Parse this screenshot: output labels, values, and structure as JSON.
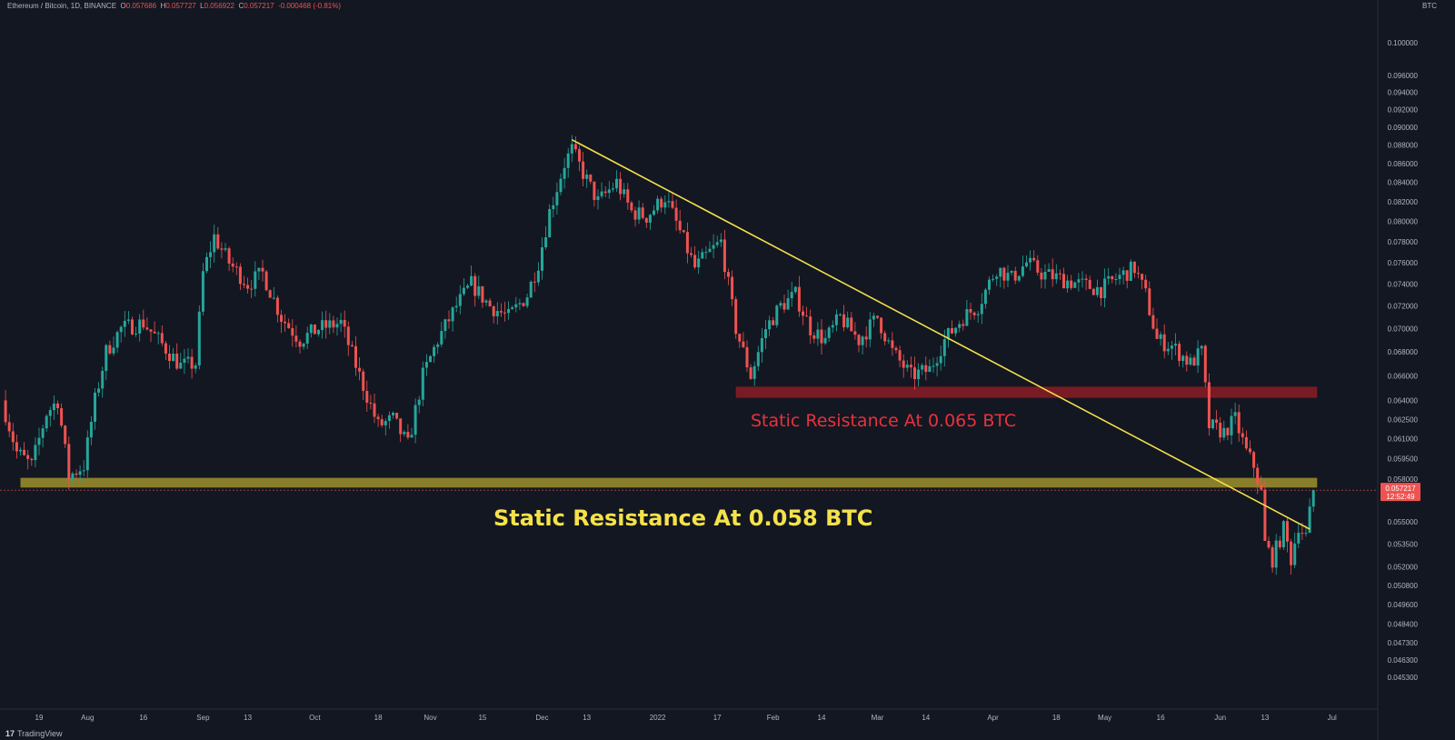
{
  "header": {
    "pair": "Ethereum / Bitcoin, 1D, BINANCE",
    "open_label": "O",
    "open": "0.057686",
    "high_label": "H",
    "high": "0.057727",
    "low_label": "L",
    "low": "0.056922",
    "close_label": "C",
    "close": "0.057217",
    "change": "-0.000468 (-0.81%)"
  },
  "currency_label": "BTC",
  "brand": {
    "name": "TradingView",
    "icon": "tradingview-logo-icon"
  },
  "colors": {
    "background": "#131722",
    "up": "#26a69a",
    "down": "#ef5350",
    "trendline": "#f5e24a",
    "support_zone": "#b2a12e",
    "resistance_zone": "#8c1c24",
    "support_text": "#f5e24a",
    "resistance_text": "#e8323c",
    "price_tag": "#ef5350"
  },
  "chart_data": {
    "type": "candlestick",
    "price_scale": "log",
    "ylim": [
      0.0445,
      0.1045
    ],
    "y_ticks": [
      "0.100000",
      "0.096000",
      "0.094000",
      "0.092000",
      "0.090000",
      "0.088000",
      "0.086000",
      "0.084000",
      "0.082000",
      "0.080000",
      "0.078000",
      "0.076000",
      "0.074000",
      "0.072000",
      "0.070000",
      "0.068000",
      "0.066000",
      "0.064000",
      "0.062500",
      "0.061000",
      "0.059500",
      "0.058000",
      "0.055000",
      "0.053500",
      "0.052000",
      "0.050800",
      "0.049600",
      "0.048400",
      "0.047300",
      "0.046300",
      "0.045300"
    ],
    "x_ticks": [
      "19",
      "Aug",
      "16",
      "Sep",
      "13",
      "Oct",
      "18",
      "Nov",
      "15",
      "Dec",
      "13",
      "2022",
      "17",
      "Feb",
      "14",
      "Mar",
      "14",
      "Apr",
      "18",
      "May",
      "16",
      "Jun",
      "13",
      "Jul"
    ],
    "current_price": {
      "value": "0.057217",
      "countdown": "12:52:49"
    },
    "trendline": {
      "start": {
        "date": "2021-12-09",
        "price": 0.0886
      },
      "end": {
        "date": "2022-06-25",
        "price": 0.0545
      }
    },
    "zones": [
      {
        "name": "support",
        "low": 0.0574,
        "high": 0.0581,
        "start": "2021-07-14",
        "end": "2022-06-27"
      },
      {
        "name": "resistance",
        "low": 0.0642,
        "high": 0.0651,
        "start": "2022-01-22",
        "end": "2022-06-27"
      }
    ],
    "annotations": [
      {
        "name": "support-label",
        "text": "Static Resistance At 0.058 BTC"
      },
      {
        "name": "resistance-label",
        "text": "Static Resistance At 0.065 BTC"
      }
    ],
    "price_path": [
      [
        "2021-07-09",
        0.064
      ],
      [
        "2021-07-13",
        0.06
      ],
      [
        "2021-07-17",
        0.059
      ],
      [
        "2021-07-21",
        0.063
      ],
      [
        "2021-07-24",
        0.064
      ],
      [
        "2021-07-27",
        0.0582
      ],
      [
        "2021-07-31",
        0.059
      ],
      [
        "2021-08-03",
        0.064
      ],
      [
        "2021-08-06",
        0.068
      ],
      [
        "2021-08-10",
        0.07
      ],
      [
        "2021-08-16",
        0.0705
      ],
      [
        "2021-08-20",
        0.069
      ],
      [
        "2021-08-26",
        0.0668
      ],
      [
        "2021-08-30",
        0.067
      ],
      [
        "2021-09-01",
        0.075
      ],
      [
        "2021-09-04",
        0.0785
      ],
      [
        "2021-09-08",
        0.076
      ],
      [
        "2021-09-13",
        0.074
      ],
      [
        "2021-09-17",
        0.075
      ],
      [
        "2021-09-22",
        0.071
      ],
      [
        "2021-09-27",
        0.069
      ],
      [
        "2021-10-02",
        0.07
      ],
      [
        "2021-10-08",
        0.0705
      ],
      [
        "2021-10-13",
        0.066
      ],
      [
        "2021-10-18",
        0.062
      ],
      [
        "2021-10-22",
        0.0625
      ],
      [
        "2021-10-26",
        0.0605
      ],
      [
        "2021-10-30",
        0.066
      ],
      [
        "2021-11-03",
        0.069
      ],
      [
        "2021-11-08",
        0.072
      ],
      [
        "2021-11-12",
        0.074
      ],
      [
        "2021-11-17",
        0.072
      ],
      [
        "2021-11-22",
        0.071
      ],
      [
        "2021-11-27",
        0.073
      ],
      [
        "2021-11-30",
        0.076
      ],
      [
        "2021-12-03",
        0.081
      ],
      [
        "2021-12-07",
        0.086
      ],
      [
        "2021-12-09",
        0.0875
      ],
      [
        "2021-12-12",
        0.085
      ],
      [
        "2021-12-16",
        0.082
      ],
      [
        "2021-12-21",
        0.084
      ],
      [
        "2021-12-25",
        0.081
      ],
      [
        "2021-12-29",
        0.0805
      ],
      [
        "2022-01-03",
        0.0825
      ],
      [
        "2022-01-07",
        0.079
      ],
      [
        "2022-01-11",
        0.0755
      ],
      [
        "2022-01-15",
        0.077
      ],
      [
        "2022-01-18",
        0.078
      ],
      [
        "2022-01-22",
        0.07
      ],
      [
        "2022-01-26",
        0.066
      ],
      [
        "2022-01-30",
        0.07
      ],
      [
        "2022-02-03",
        0.072
      ],
      [
        "2022-02-07",
        0.073
      ],
      [
        "2022-02-11",
        0.07
      ],
      [
        "2022-02-15",
        0.069
      ],
      [
        "2022-02-19",
        0.071
      ],
      [
        "2022-02-24",
        0.069
      ],
      [
        "2022-03-01",
        0.071
      ],
      [
        "2022-03-05",
        0.068
      ],
      [
        "2022-03-10",
        0.066
      ],
      [
        "2022-03-15",
        0.0665
      ],
      [
        "2022-03-19",
        0.069
      ],
      [
        "2022-03-24",
        0.071
      ],
      [
        "2022-03-28",
        0.072
      ],
      [
        "2022-04-02",
        0.0755
      ],
      [
        "2022-04-06",
        0.0745
      ],
      [
        "2022-04-10",
        0.076
      ],
      [
        "2022-04-14",
        0.075
      ],
      [
        "2022-04-19",
        0.0745
      ],
      [
        "2022-04-24",
        0.074
      ],
      [
        "2022-04-30",
        0.0735
      ],
      [
        "2022-05-04",
        0.0745
      ],
      [
        "2022-05-09",
        0.0755
      ],
      [
        "2022-05-12",
        0.073
      ],
      [
        "2022-05-15",
        0.069
      ],
      [
        "2022-05-19",
        0.0685
      ],
      [
        "2022-05-24",
        0.067
      ],
      [
        "2022-05-27",
        0.068
      ],
      [
        "2022-05-29",
        0.062
      ],
      [
        "2022-06-02",
        0.0615
      ],
      [
        "2022-06-05",
        0.0625
      ],
      [
        "2022-06-08",
        0.06
      ],
      [
        "2022-06-10",
        0.059
      ],
      [
        "2022-06-12",
        0.057
      ],
      [
        "2022-06-13",
        0.0535
      ],
      [
        "2022-06-15",
        0.0525
      ],
      [
        "2022-06-18",
        0.0545
      ],
      [
        "2022-06-20",
        0.0525
      ],
      [
        "2022-06-22",
        0.0548
      ],
      [
        "2022-06-24",
        0.054
      ],
      [
        "2022-06-26",
        0.0572
      ]
    ]
  }
}
